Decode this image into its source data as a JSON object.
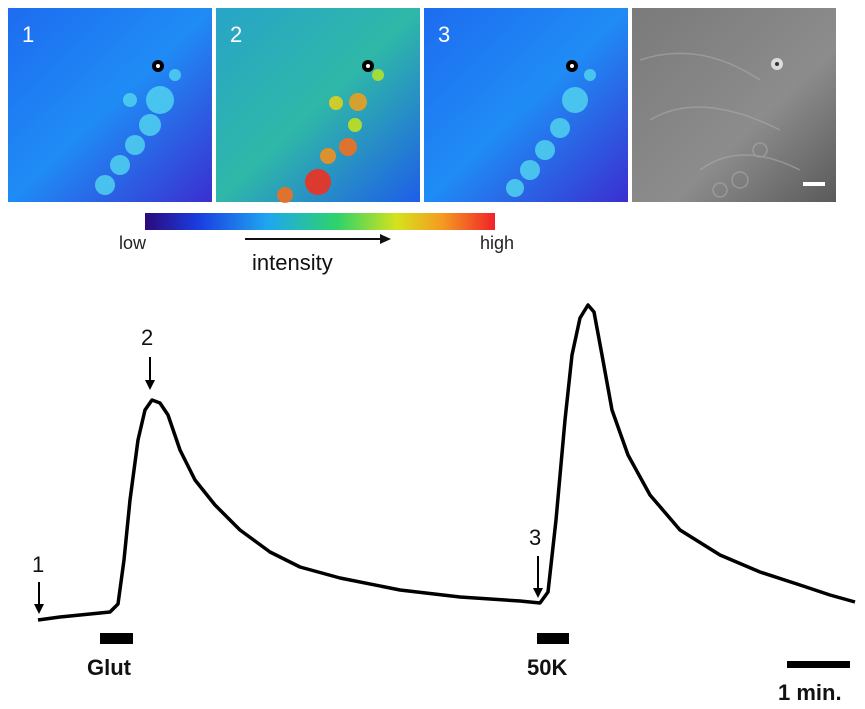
{
  "panels": {
    "labels": [
      "1",
      "2",
      "3"
    ]
  },
  "colorbar": {
    "low": "low",
    "high": "high",
    "axis_label": "intensity"
  },
  "trace": {
    "markers": [
      "1",
      "2",
      "3"
    ],
    "stimuli": [
      "Glut",
      "50K"
    ],
    "scale_bar": "1 min."
  }
}
